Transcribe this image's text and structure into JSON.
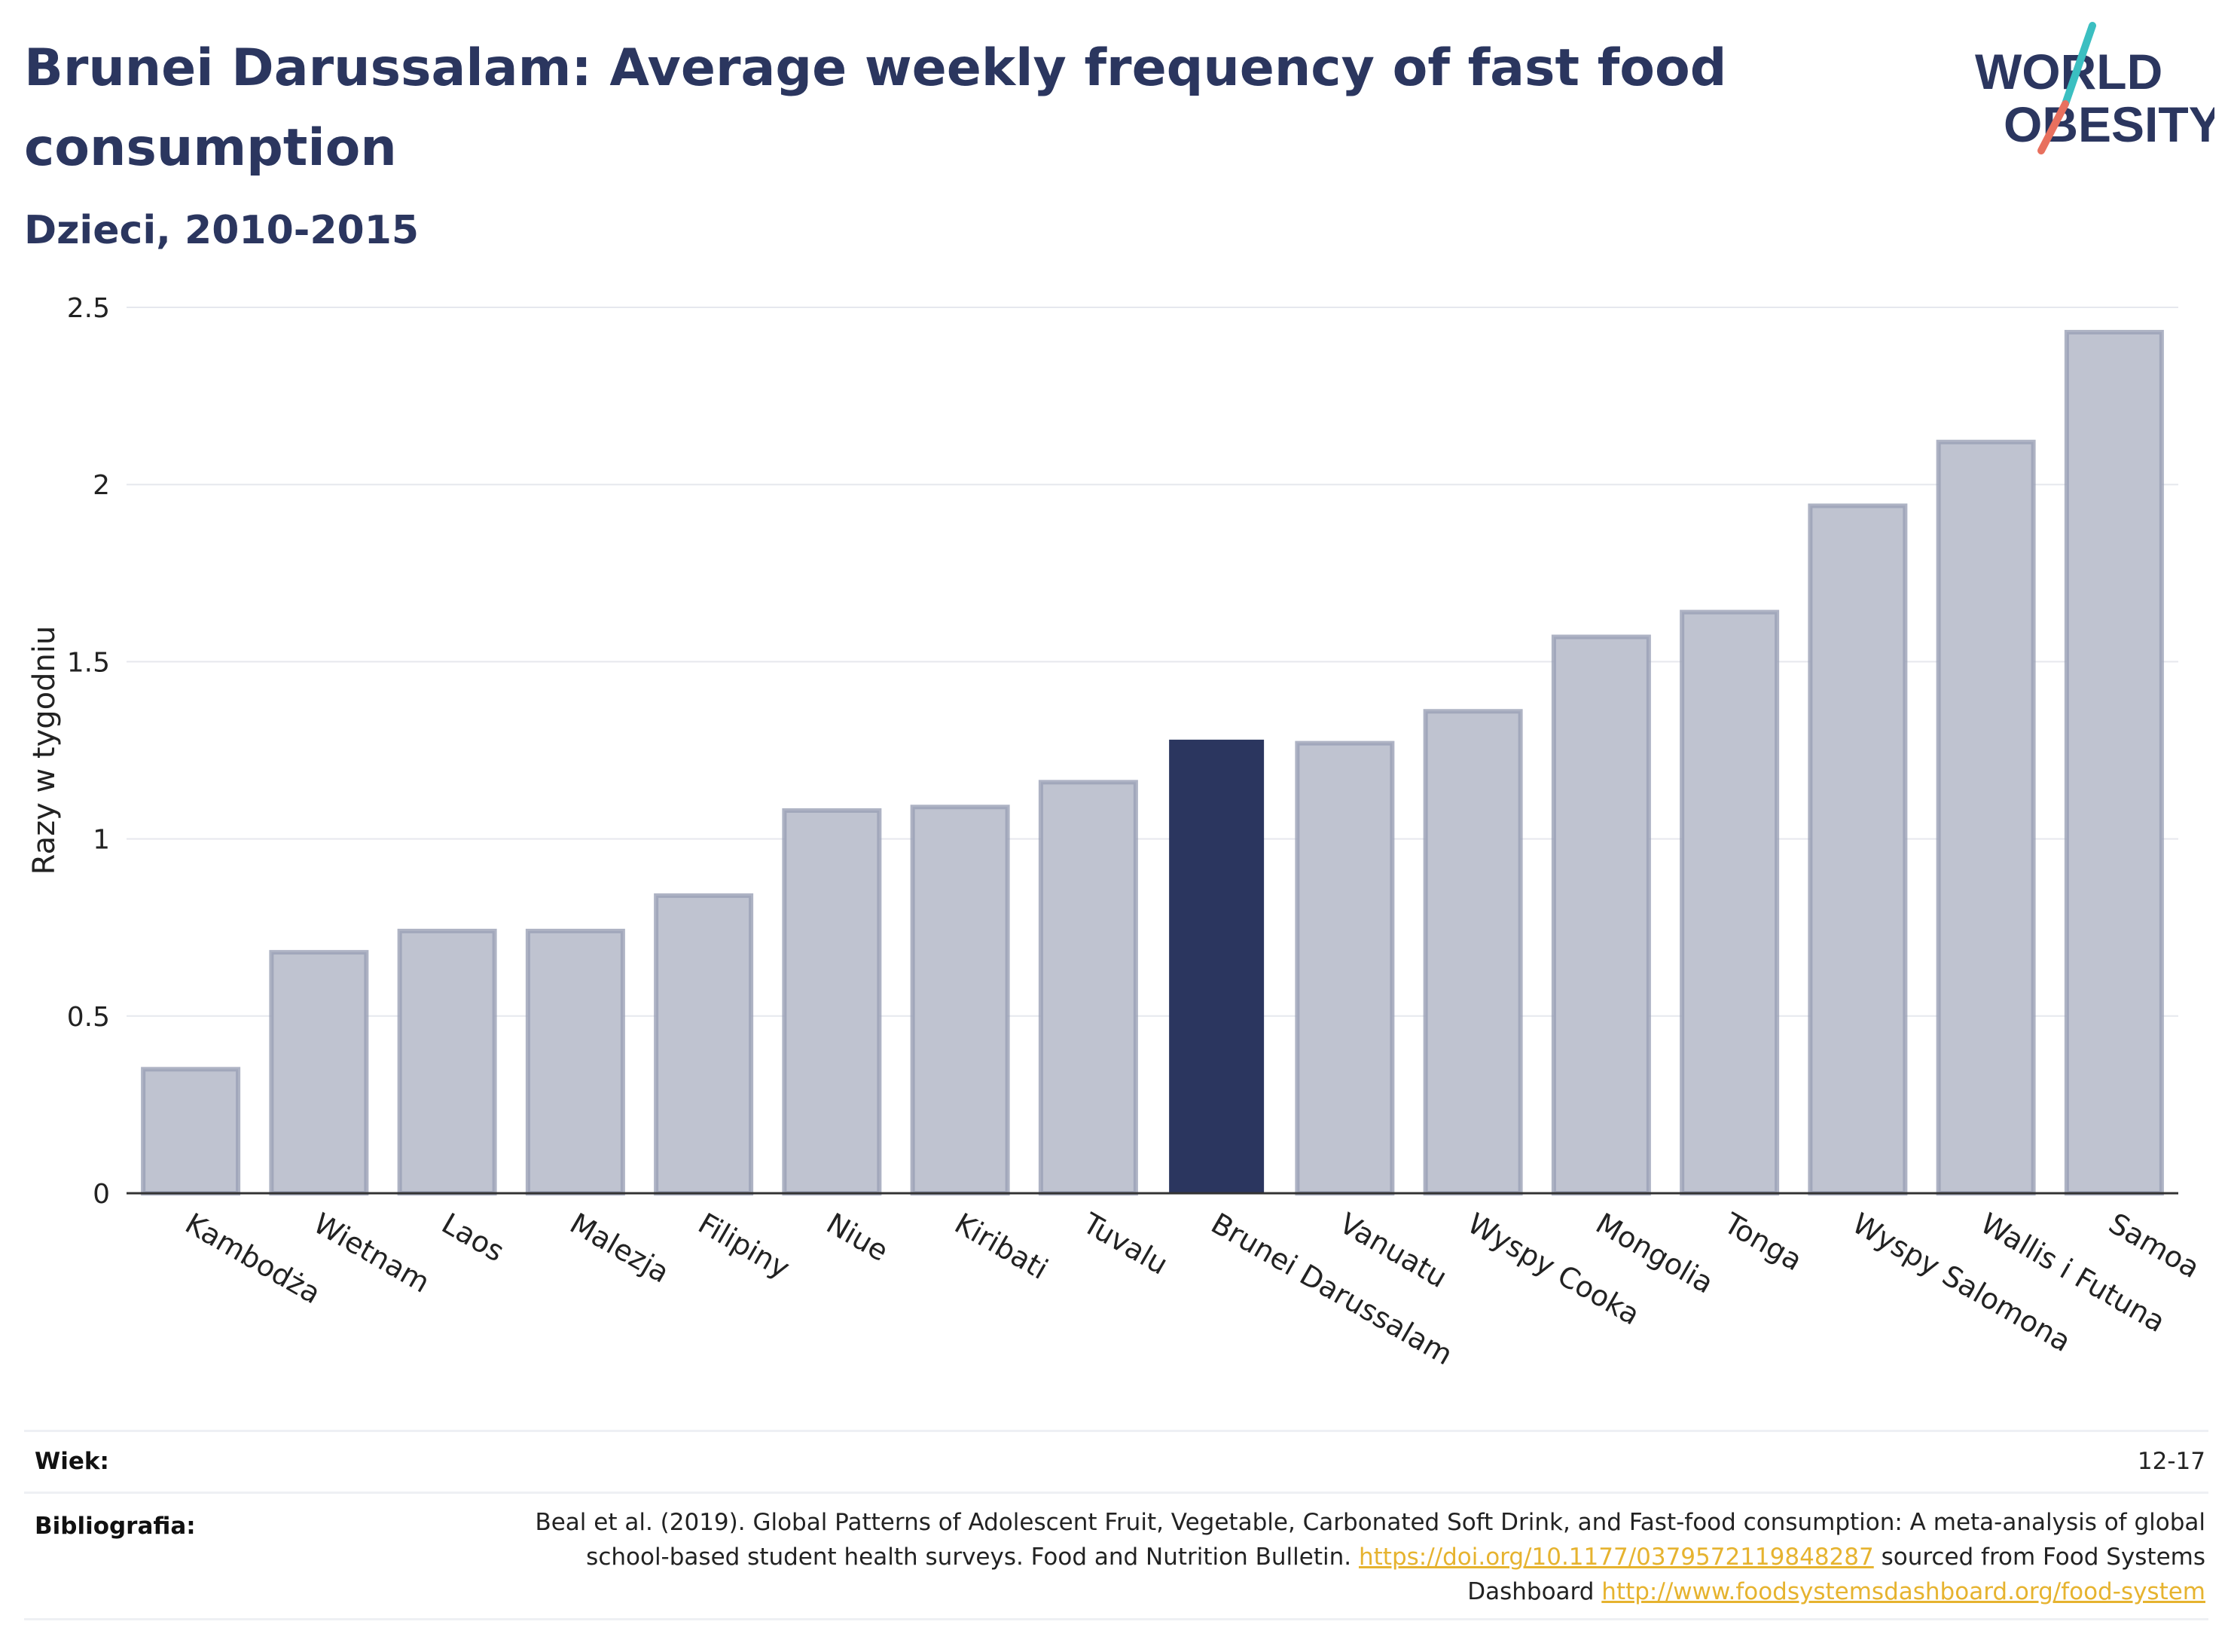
{
  "header": {
    "title": "Brunei Darussalam: Average weekly frequency of fast food consumption",
    "subtitle": "Dzieci, 2010-2015"
  },
  "logo": {
    "line1": "WORLD",
    "line2": "OBESITY",
    "text_color": "#2b365f",
    "accent_teal": "#3bbfc1",
    "accent_red": "#e8705e"
  },
  "colors": {
    "highlight": "#2b365f",
    "others": "#bfc3d0",
    "others_border": "#9aa0b5"
  },
  "chart_data": {
    "type": "bar",
    "title": "",
    "xlabel": "",
    "ylabel": "Razy w tygodniu",
    "ylim": [
      0,
      2.5
    ],
    "yticks": [
      0,
      0.5,
      1,
      1.5,
      2,
      2.5
    ],
    "ytick_labels": [
      "0",
      "0.5",
      "1",
      "1.5",
      "2",
      "2.5"
    ],
    "grid": true,
    "highlight": "Brunei Darussalam",
    "categories": [
      "Kambodża",
      "Wietnam",
      "Laos",
      "Malezja",
      "Filipiny",
      "Niue",
      "Kiribati",
      "Tuvalu",
      "Brunei Darussalam",
      "Vanuatu",
      "Wyspy Cooka",
      "Mongolia",
      "Tonga",
      "Wyspy Salomona",
      "Wallis i Futuna",
      "Samoa"
    ],
    "values": [
      0.35,
      0.68,
      0.74,
      0.74,
      0.84,
      1.08,
      1.09,
      1.16,
      1.28,
      1.27,
      1.36,
      1.57,
      1.64,
      1.94,
      2.12,
      2.43
    ]
  },
  "meta": {
    "age_label": "Wiek:",
    "age_value": "12-17",
    "source_label": "Bibliografia:",
    "source_text_1": "Beal et al. (2019). Global Patterns of Adolescent Fruit, Vegetable, Carbonated Soft Drink, and Fast-food consumption: A meta-analysis of global school-based student health surveys. Food and Nutrition Bulletin.",
    "source_link_1": "https://doi.org/10.1177/0379572119848287",
    "source_text_2": "sourced from Food Systems Dashboard",
    "source_link_2": "http://www.foodsystemsdashboard.org/food-system"
  }
}
